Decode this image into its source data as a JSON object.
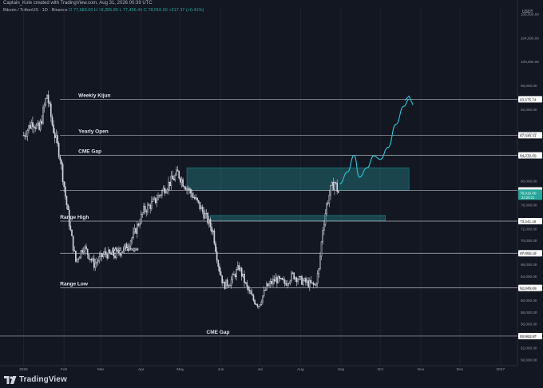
{
  "header": {
    "caption": "Captain_Kole created with TradingView.com, Aug 31, 2026 00:39 UTC",
    "symbol": "Bitcoin / TetherUS · 1D · Binance",
    "ohlc": "O 77,683.00  H 78,385.89  L 77,436.48  C 78,016.00  +317.47 (+0.41%)",
    "currency": "USDT"
  },
  "footer": {
    "brand": "TradingView",
    "logo_icon": "tradingview-logo-icon"
  },
  "colors": {
    "background": "#131722",
    "up": "#26a69a",
    "down": "#ef5350",
    "candle": "#d1d4dc",
    "zone": "#2aa8a8",
    "projection": "#26c6da",
    "level_line": "#b2b5be"
  },
  "chart_data": {
    "type": "candlestick",
    "symbol": "BTCUSDT",
    "timeframe": "1D",
    "ylim": [
      49000,
      109000
    ],
    "y_ticks": [
      "108,000.00",
      "104,000.00",
      "100,000.00",
      "96,000.00",
      "92,000.00",
      "88,000.00",
      "84,000.00",
      "80,000.00",
      "76,000.00",
      "72,000.00",
      "70,000.00",
      "68,000.00",
      "66,000.00",
      "64,000.00",
      "62,000.00",
      "60,000.00",
      "58,000.00",
      "56,000.00",
      "54,000.00",
      "52,000.00",
      "50,000.00"
    ],
    "x_ticks": [
      "2026",
      "Feb",
      "Mar",
      "Apr",
      "May",
      "Jun",
      "Jul",
      "Aug",
      "Sep",
      "Oct",
      "Nov",
      "Dec",
      "2027"
    ],
    "x_tick_days": [
      0,
      31,
      59,
      90,
      120,
      151,
      181,
      212,
      243,
      273,
      304,
      334,
      365
    ],
    "xlim_days": [
      -18,
      378
    ],
    "last_price": "78,016.00",
    "last_price_sub": "23:20:21",
    "levels": [
      {
        "label": "Weekly Kijun",
        "value": 93675.74,
        "tag": "93,675.74",
        "label_day": 42
      },
      {
        "label": "Yearly Open",
        "value": 87648.31,
        "tag": "87,648.31",
        "label_day": 42
      },
      {
        "label": "CME Gap",
        "value": 84270.0,
        "tag": "84,270.00",
        "label_day": 42
      },
      {
        "label": "",
        "value": 78404.0,
        "tag": "78,404.00",
        "label_day": null
      },
      {
        "label": "Range High",
        "value": 73241.18,
        "tag": "73,241.18",
        "label_day": 28
      },
      {
        "label": "Mid Range",
        "value": 67855.15,
        "tag": "67,855.15",
        "label_day": 68
      },
      {
        "label": "Range Low",
        "value": 62045.0,
        "tag": "62,045.00",
        "label_day": 28
      },
      {
        "label": "CME Gap",
        "value": 53962.97,
        "tag": "53,962.97",
        "label_day": 140
      }
    ],
    "zones": [
      {
        "x0_day": 125,
        "x1_day": 295,
        "y0": 78400,
        "y1": 82200
      },
      {
        "x0_day": 143,
        "x1_day": 277,
        "y0": 73300,
        "y1": 74200
      }
    ],
    "projection": {
      "x_days": [
        242,
        248,
        253,
        257,
        263,
        268,
        273,
        279,
        285,
        291,
        295
      ],
      "y": [
        79500,
        81500,
        84300,
        80600,
        82200,
        84200,
        83600,
        85600,
        89500,
        92500,
        93675
      ]
    },
    "anchors": [
      {
        "day": 0,
        "price": 87648
      },
      {
        "day": 7,
        "price": 90000
      },
      {
        "day": 12,
        "price": 88500
      },
      {
        "day": 18,
        "price": 94500
      },
      {
        "day": 22,
        "price": 89500
      },
      {
        "day": 28,
        "price": 84000
      },
      {
        "day": 32,
        "price": 77500
      },
      {
        "day": 36,
        "price": 71500
      },
      {
        "day": 40,
        "price": 66500
      },
      {
        "day": 46,
        "price": 69000
      },
      {
        "day": 54,
        "price": 66000
      },
      {
        "day": 62,
        "price": 67800
      },
      {
        "day": 70,
        "price": 67500
      },
      {
        "day": 78,
        "price": 68800
      },
      {
        "day": 84,
        "price": 70800
      },
      {
        "day": 92,
        "price": 75000
      },
      {
        "day": 100,
        "price": 76500
      },
      {
        "day": 108,
        "price": 78800
      },
      {
        "day": 114,
        "price": 80200
      },
      {
        "day": 118,
        "price": 81300
      },
      {
        "day": 122,
        "price": 79800
      },
      {
        "day": 128,
        "price": 78000
      },
      {
        "day": 134,
        "price": 76000
      },
      {
        "day": 140,
        "price": 73800
      },
      {
        "day": 145,
        "price": 71500
      },
      {
        "day": 149,
        "price": 66000
      },
      {
        "day": 153,
        "price": 62500
      },
      {
        "day": 158,
        "price": 63000
      },
      {
        "day": 165,
        "price": 65500
      },
      {
        "day": 171,
        "price": 62000
      },
      {
        "day": 176,
        "price": 60000
      },
      {
        "day": 180,
        "price": 59200
      },
      {
        "day": 186,
        "price": 62200
      },
      {
        "day": 193,
        "price": 63500
      },
      {
        "day": 200,
        "price": 62800
      },
      {
        "day": 206,
        "price": 64200
      },
      {
        "day": 212,
        "price": 63300
      },
      {
        "day": 218,
        "price": 62800
      },
      {
        "day": 223,
        "price": 62400
      },
      {
        "day": 226,
        "price": 65000
      },
      {
        "day": 229,
        "price": 72000
      },
      {
        "day": 232,
        "price": 76000
      },
      {
        "day": 235,
        "price": 78500
      },
      {
        "day": 238,
        "price": 79800
      },
      {
        "day": 241,
        "price": 78016
      }
    ]
  }
}
